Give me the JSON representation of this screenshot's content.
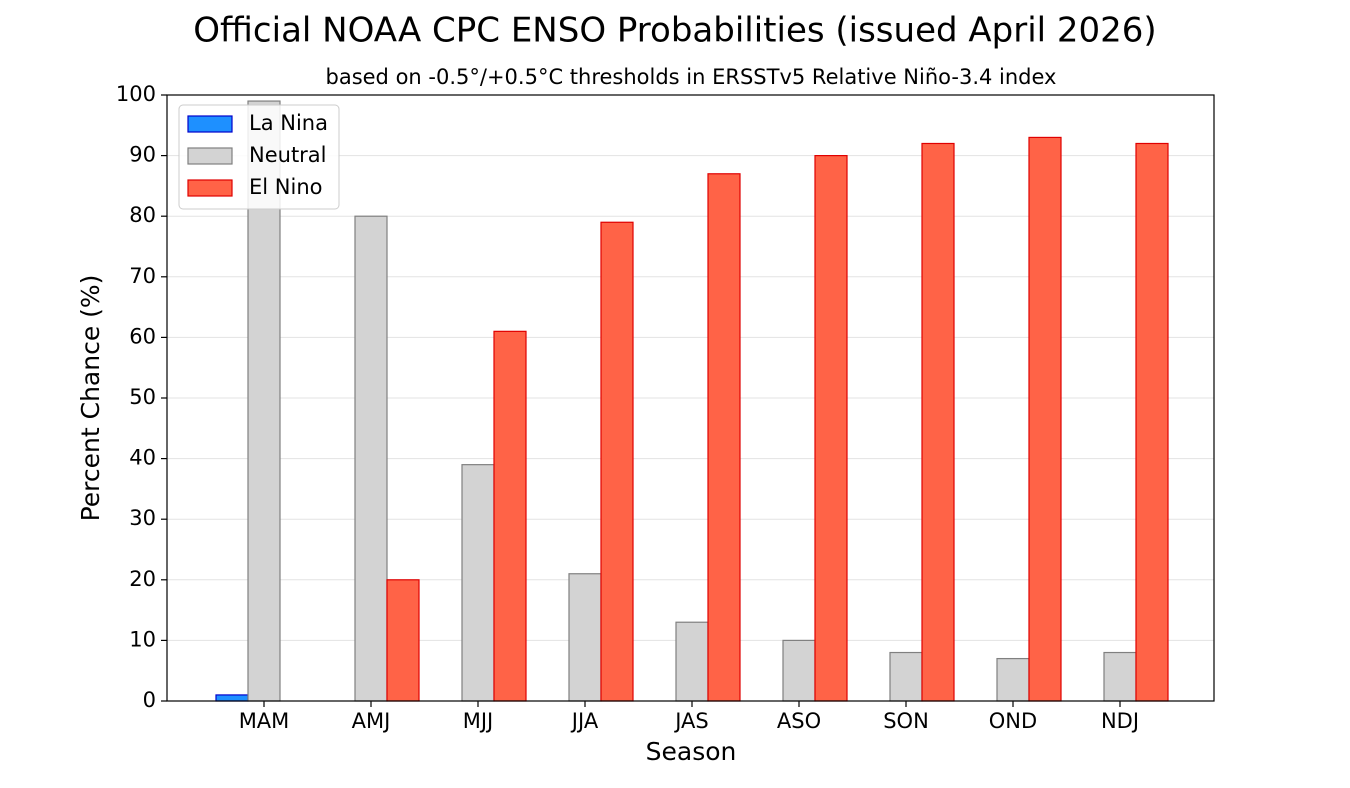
{
  "chart_data": {
    "type": "bar",
    "title": "Official NOAA CPC ENSO Probabilities (issued April 2026)",
    "subtitle": "based on -0.5°/+0.5°C thresholds in ERSSTv5 Relative Niño-3.4 index",
    "x_label": "Season",
    "y_label": "Percent Chance (%)",
    "categories": [
      "MAM",
      "AMJ",
      "MJJ",
      "JJA",
      "JAS",
      "ASO",
      "SON",
      "OND",
      "NDJ"
    ],
    "series": [
      {
        "name": "La Nina",
        "color": "#1e90ff",
        "edge_color": "#0000cc",
        "values": [
          1,
          0,
          0,
          0,
          0,
          0,
          0,
          0,
          0
        ]
      },
      {
        "name": "Neutral",
        "color": "#d3d3d3",
        "edge_color": "#808080",
        "values": [
          99,
          80,
          39,
          21,
          13,
          10,
          8,
          7,
          8
        ]
      },
      {
        "name": "El Nino",
        "color": "#ff6347",
        "edge_color": "#e00000",
        "values": [
          0,
          20,
          61,
          79,
          87,
          90,
          92,
          93,
          92
        ]
      }
    ],
    "ylim": [
      0,
      100
    ],
    "yticks": [
      0,
      10,
      20,
      30,
      40,
      50,
      60,
      70,
      80,
      90,
      100
    ],
    "grid": true,
    "legend_position": "upper-left"
  }
}
